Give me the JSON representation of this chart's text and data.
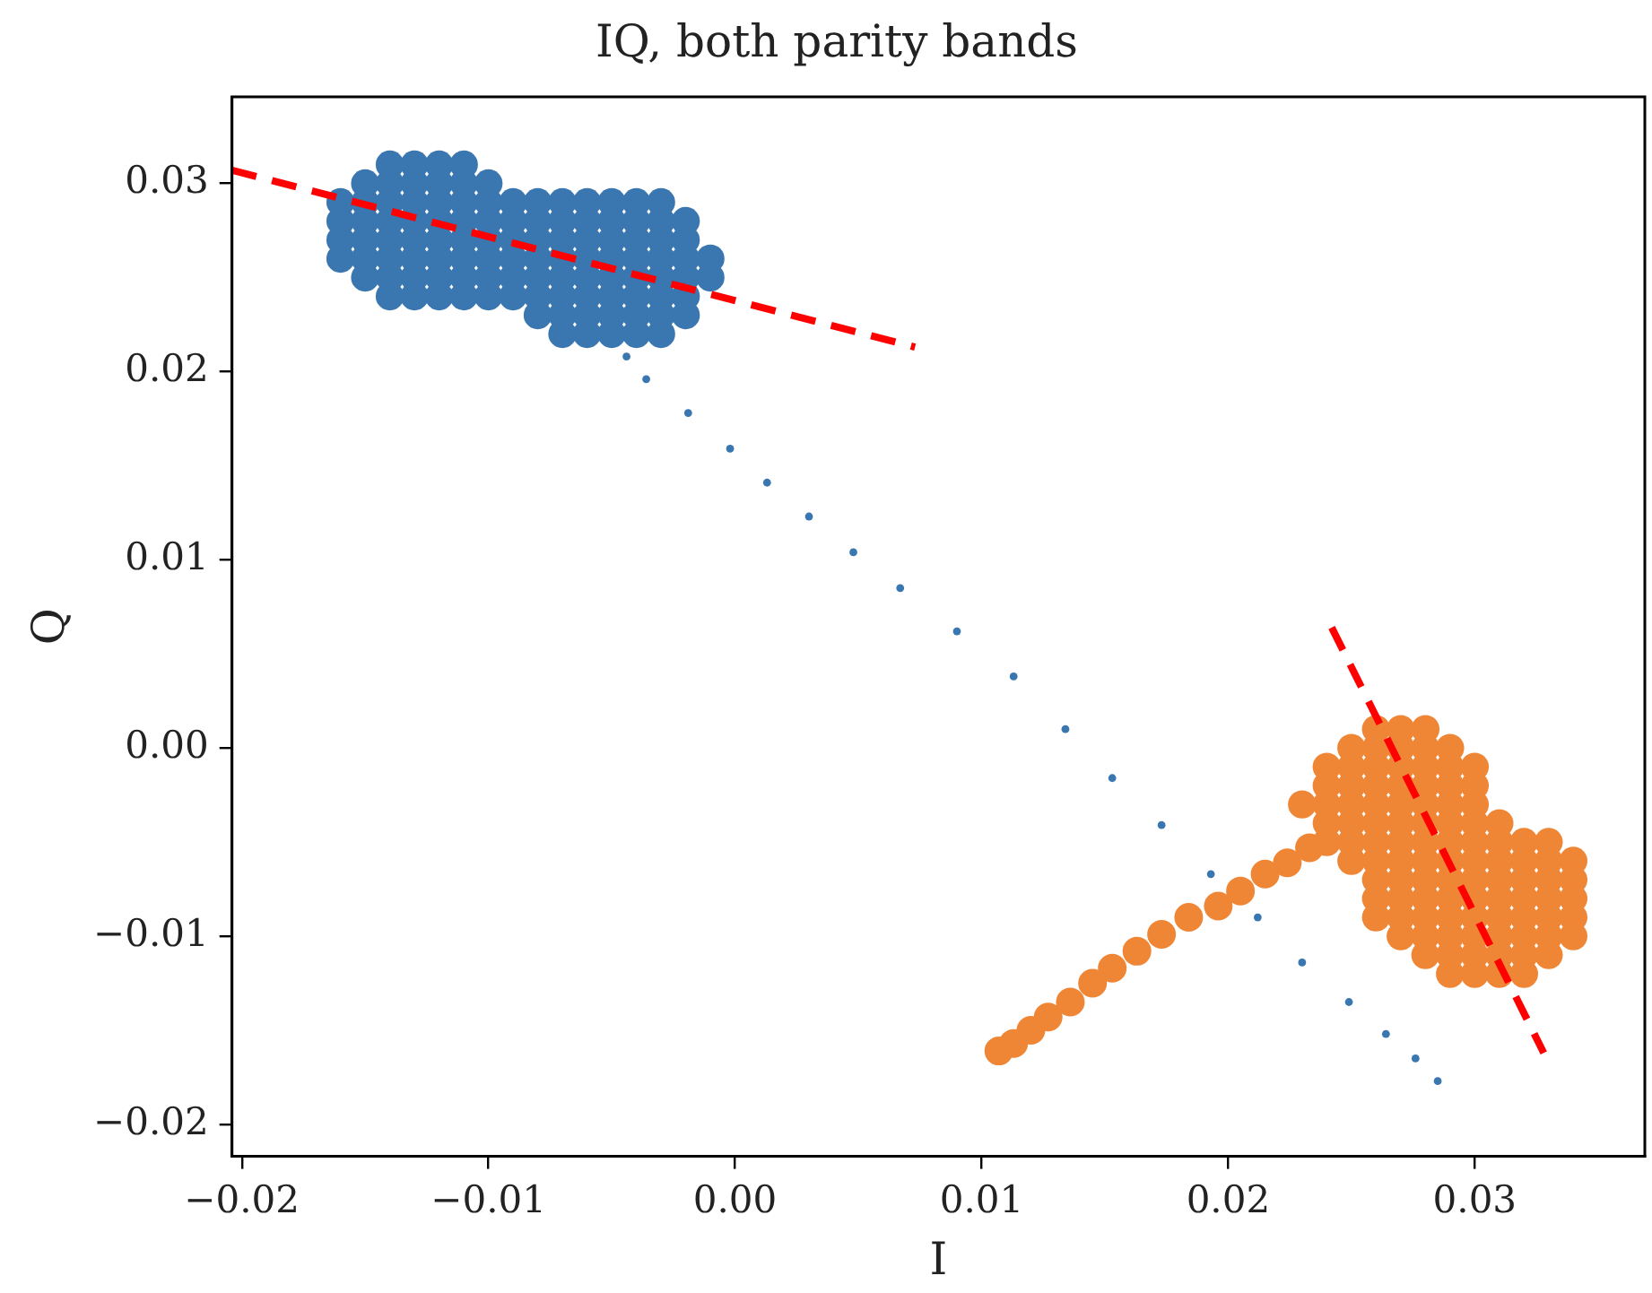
{
  "chart_data": {
    "type": "scatter",
    "title": "IQ, both parity bands",
    "xlabel": "I",
    "ylabel": "Q",
    "xlim": [
      -0.0204,
      0.0369
    ],
    "ylim": [
      -0.0217,
      0.0346
    ],
    "xticks": [
      {
        "value": -0.02,
        "label": "−0.02"
      },
      {
        "value": -0.01,
        "label": "−0.01"
      },
      {
        "value": 0,
        "label": "0.00"
      },
      {
        "value": 0.01,
        "label": "0.01"
      },
      {
        "value": 0.02,
        "label": "0.02"
      },
      {
        "value": 0.03,
        "label": "0.03"
      }
    ],
    "yticks": [
      {
        "value": -0.02,
        "label": "−0.02"
      },
      {
        "value": -0.01,
        "label": "−0.01"
      },
      {
        "value": 0,
        "label": "0.00"
      },
      {
        "value": 0.01,
        "label": "0.01"
      },
      {
        "value": 0.02,
        "label": "0.02"
      },
      {
        "value": 0.03,
        "label": "0.03"
      }
    ],
    "grid": false,
    "series": [
      {
        "type": "scatter",
        "color": "#3a76af",
        "marker": "circle",
        "x": [
          -0.014,
          -0.013,
          -0.012,
          -0.011,
          -0.015,
          -0.014,
          -0.013,
          -0.012,
          -0.011,
          -0.01,
          -0.016,
          -0.015,
          -0.014,
          -0.013,
          -0.012,
          -0.011,
          -0.01,
          -0.009,
          -0.008,
          -0.007,
          -0.006,
          -0.005,
          -0.004,
          -0.003,
          -0.016,
          -0.015,
          -0.014,
          -0.013,
          -0.012,
          -0.011,
          -0.01,
          -0.009,
          -0.008,
          -0.007,
          -0.006,
          -0.005,
          -0.004,
          -0.003,
          -0.002,
          -0.016,
          -0.015,
          -0.014,
          -0.013,
          -0.012,
          -0.011,
          -0.01,
          -0.009,
          -0.008,
          -0.007,
          -0.006,
          -0.005,
          -0.004,
          -0.003,
          -0.002,
          -0.016,
          -0.015,
          -0.014,
          -0.013,
          -0.012,
          -0.011,
          -0.01,
          -0.009,
          -0.008,
          -0.007,
          -0.006,
          -0.005,
          -0.004,
          -0.003,
          -0.002,
          -0.001,
          -0.015,
          -0.014,
          -0.013,
          -0.012,
          -0.011,
          -0.01,
          -0.009,
          -0.008,
          -0.007,
          -0.006,
          -0.005,
          -0.004,
          -0.003,
          -0.002,
          -0.001,
          -0.014,
          -0.013,
          -0.012,
          -0.011,
          -0.01,
          -0.009,
          -0.008,
          -0.007,
          -0.006,
          -0.005,
          -0.004,
          -0.003,
          -0.002,
          -0.008,
          -0.007,
          -0.006,
          -0.005,
          -0.004,
          -0.003,
          -0.002,
          -0.007,
          -0.006,
          -0.005,
          -0.004,
          -0.003
        ],
        "values": [
          0.031,
          0.031,
          0.031,
          0.031,
          0.03,
          0.03,
          0.03,
          0.03,
          0.03,
          0.03,
          0.029,
          0.029,
          0.029,
          0.029,
          0.029,
          0.029,
          0.029,
          0.029,
          0.029,
          0.029,
          0.029,
          0.029,
          0.029,
          0.029,
          0.028,
          0.028,
          0.028,
          0.028,
          0.028,
          0.028,
          0.028,
          0.028,
          0.028,
          0.028,
          0.028,
          0.028,
          0.028,
          0.028,
          0.028,
          0.027,
          0.027,
          0.027,
          0.027,
          0.027,
          0.027,
          0.027,
          0.027,
          0.027,
          0.027,
          0.027,
          0.027,
          0.027,
          0.027,
          0.027,
          0.026,
          0.026,
          0.026,
          0.026,
          0.026,
          0.026,
          0.026,
          0.026,
          0.026,
          0.026,
          0.026,
          0.026,
          0.026,
          0.026,
          0.026,
          0.026,
          0.025,
          0.025,
          0.025,
          0.025,
          0.025,
          0.025,
          0.025,
          0.025,
          0.025,
          0.025,
          0.025,
          0.025,
          0.025,
          0.025,
          0.025,
          0.024,
          0.024,
          0.024,
          0.024,
          0.024,
          0.024,
          0.024,
          0.024,
          0.024,
          0.024,
          0.024,
          0.024,
          0.024,
          0.023,
          0.023,
          0.023,
          0.023,
          0.023,
          0.023,
          0.023,
          0.022,
          0.022,
          0.022,
          0.022,
          0.022
        ]
      },
      {
        "type": "scatter",
        "color": "#3a76af",
        "marker": "circle",
        "x": [
          -0.0044,
          -0.0036,
          -0.0019,
          -0.0002,
          0.0013,
          0.003,
          0.0048,
          0.0067,
          0.009,
          0.0113,
          0.0134,
          0.0153,
          0.0173,
          0.0193,
          0.0212,
          0.023,
          0.0249,
          0.0264,
          0.0276,
          0.0285
        ],
        "values": [
          0.0208,
          0.0196,
          0.0178,
          0.0159,
          0.0141,
          0.0123,
          0.0104,
          0.0085,
          0.0062,
          0.0038,
          0.001,
          -0.0016,
          -0.0041,
          -0.0067,
          -0.009,
          -0.0114,
          -0.0135,
          -0.0152,
          -0.0165,
          -0.0177
        ]
      },
      {
        "type": "scatter",
        "color": "#ef8636",
        "marker": "circle",
        "x": [
          0.026,
          0.027,
          0.028,
          0.025,
          0.026,
          0.027,
          0.028,
          0.029,
          0.024,
          0.025,
          0.026,
          0.027,
          0.028,
          0.029,
          0.03,
          0.024,
          0.025,
          0.026,
          0.027,
          0.028,
          0.029,
          0.03,
          0.023,
          0.024,
          0.025,
          0.026,
          0.027,
          0.028,
          0.029,
          0.03,
          0.024,
          0.025,
          0.026,
          0.027,
          0.028,
          0.029,
          0.03,
          0.031,
          0.024,
          0.025,
          0.026,
          0.027,
          0.028,
          0.029,
          0.03,
          0.031,
          0.032,
          0.033,
          0.025,
          0.026,
          0.027,
          0.028,
          0.029,
          0.03,
          0.031,
          0.032,
          0.033,
          0.034,
          0.026,
          0.027,
          0.028,
          0.029,
          0.03,
          0.031,
          0.032,
          0.033,
          0.034,
          0.026,
          0.027,
          0.028,
          0.029,
          0.03,
          0.031,
          0.032,
          0.033,
          0.034,
          0.026,
          0.027,
          0.028,
          0.029,
          0.03,
          0.031,
          0.032,
          0.033,
          0.034,
          0.027,
          0.028,
          0.029,
          0.03,
          0.031,
          0.032,
          0.033,
          0.034,
          0.028,
          0.029,
          0.03,
          0.031,
          0.032,
          0.033,
          0.029,
          0.03,
          0.031,
          0.032
        ],
        "values": [
          0.001,
          0.001,
          0.001,
          0.0,
          0.0,
          0.0,
          0.0,
          0.0,
          -0.001,
          -0.001,
          -0.001,
          -0.001,
          -0.001,
          -0.001,
          -0.001,
          -0.002,
          -0.002,
          -0.002,
          -0.002,
          -0.002,
          -0.002,
          -0.002,
          -0.003,
          -0.003,
          -0.003,
          -0.003,
          -0.003,
          -0.003,
          -0.003,
          -0.003,
          -0.004,
          -0.004,
          -0.004,
          -0.004,
          -0.004,
          -0.004,
          -0.004,
          -0.004,
          -0.005,
          -0.005,
          -0.005,
          -0.005,
          -0.005,
          -0.005,
          -0.005,
          -0.005,
          -0.005,
          -0.005,
          -0.006,
          -0.006,
          -0.006,
          -0.006,
          -0.006,
          -0.006,
          -0.006,
          -0.006,
          -0.006,
          -0.006,
          -0.007,
          -0.007,
          -0.007,
          -0.007,
          -0.007,
          -0.007,
          -0.007,
          -0.007,
          -0.007,
          -0.008,
          -0.008,
          -0.008,
          -0.008,
          -0.008,
          -0.008,
          -0.008,
          -0.008,
          -0.008,
          -0.009,
          -0.009,
          -0.009,
          -0.009,
          -0.009,
          -0.009,
          -0.009,
          -0.009,
          -0.009,
          -0.01,
          -0.01,
          -0.01,
          -0.01,
          -0.01,
          -0.01,
          -0.01,
          -0.01,
          -0.011,
          -0.011,
          -0.011,
          -0.011,
          -0.011,
          -0.011,
          -0.012,
          -0.012,
          -0.012,
          -0.012
        ]
      },
      {
        "type": "scatter",
        "color": "#ef8636",
        "marker": "circle",
        "x": [
          0.0233,
          0.0224,
          0.0215,
          0.0205,
          0.0196,
          0.0184,
          0.0173,
          0.0163,
          0.0153,
          0.0145,
          0.0136,
          0.0127,
          0.012,
          0.0113,
          0.0107
        ],
        "values": [
          -0.0053,
          -0.0061,
          -0.0067,
          -0.0076,
          -0.0084,
          -0.009,
          -0.0099,
          -0.0108,
          -0.0117,
          -0.0125,
          -0.0135,
          -0.0143,
          -0.015,
          -0.0157,
          -0.0161
        ]
      },
      {
        "type": "line",
        "color": "#ff0000",
        "marker": "none",
        "line_style": "dashed",
        "x": [
          -0.0204,
          0.0073
        ],
        "values": [
          0.0307,
          0.0213
        ]
      },
      {
        "type": "line",
        "color": "#ff0000",
        "marker": "none",
        "line_style": "dashed",
        "x": [
          0.0242,
          0.0328
        ],
        "values": [
          0.0064,
          -0.0162
        ]
      }
    ]
  }
}
